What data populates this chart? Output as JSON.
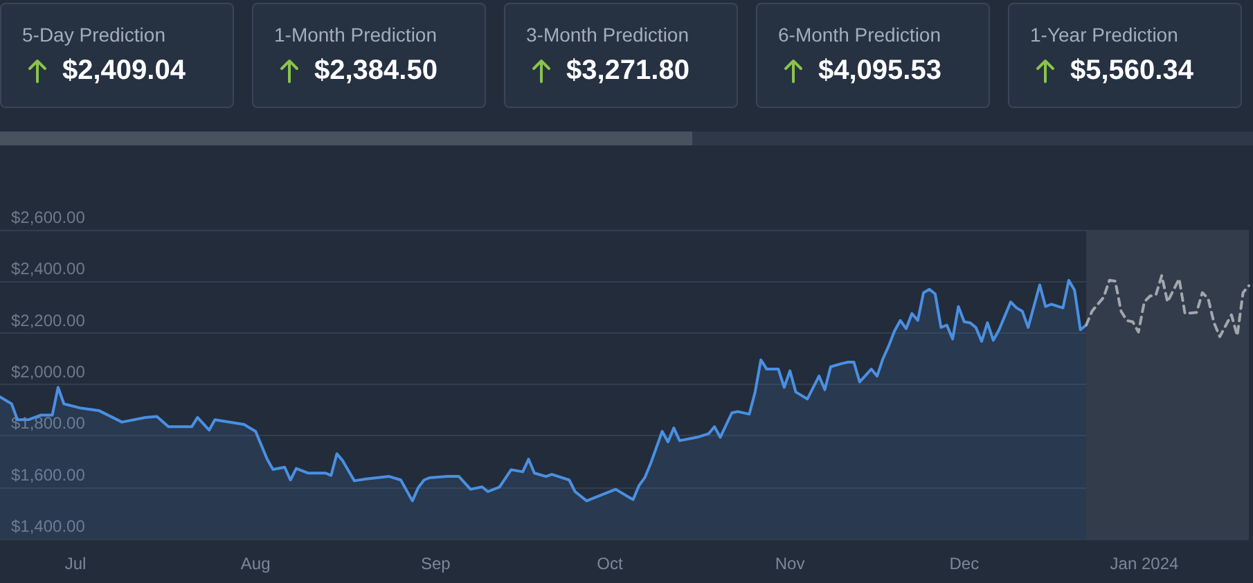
{
  "chart_data": [
    {
      "type": "other",
      "annotations": [
        "5-Day Prediction",
        "$2,409.04",
        "1-Month Prediction",
        "$2,384.50",
        "3-Month Prediction",
        "$3,271.80",
        "6-Month Prediction",
        "$4,095.53",
        "1-Year Prediction",
        "$5,560.34"
      ]
    },
    {
      "type": "area",
      "grid": "y",
      "xlim": [
        "2023-06-18",
        "2024-01-19"
      ],
      "ylim": [
        1400,
        2600
      ],
      "xticks": [
        {
          "value": "2023-07-01",
          "label": "Jul"
        },
        {
          "value": "2023-08-01",
          "label": "Aug"
        },
        {
          "value": "2023-09-01",
          "label": "Sep"
        },
        {
          "value": "2023-10-01",
          "label": "Oct"
        },
        {
          "value": "2023-11-01",
          "label": "Nov"
        },
        {
          "value": "2023-12-01",
          "label": "Dec"
        },
        {
          "value": "2024-01-01",
          "label": "Jan 2024"
        }
      ],
      "yticks": [
        {
          "value": 1400,
          "label": "$1,400.00"
        },
        {
          "value": 1600,
          "label": "$1,600.00"
        },
        {
          "value": 1800,
          "label": "$1,800.00"
        },
        {
          "value": 2000,
          "label": "$2,000.00"
        },
        {
          "value": 2200,
          "label": "$2,200.00"
        },
        {
          "value": 2400,
          "label": "$2,400.00"
        },
        {
          "value": 2600,
          "label": "$2,600.00"
        }
      ],
      "bands": [
        {
          "axis": "x",
          "from": "2023-12-22",
          "to": "2024-01-19",
          "color": "#333c4b"
        }
      ],
      "series": [
        {
          "type": "area",
          "color": "#4a90e2",
          "line_style": "solid",
          "x": [
            "2023-06-18",
            "2023-06-20",
            "2023-06-21",
            "2023-06-23",
            "2023-06-25",
            "2023-06-27",
            "2023-06-28",
            "2023-06-29",
            "2023-07-02",
            "2023-07-05",
            "2023-07-09",
            "2023-07-13",
            "2023-07-15",
            "2023-07-17",
            "2023-07-19",
            "2023-07-21",
            "2023-07-22",
            "2023-07-24",
            "2023-07-25",
            "2023-07-30",
            "2023-08-01",
            "2023-08-03",
            "2023-08-04",
            "2023-08-06",
            "2023-08-07",
            "2023-08-08",
            "2023-08-10",
            "2023-08-13",
            "2023-08-14",
            "2023-08-15",
            "2023-08-16",
            "2023-08-18",
            "2023-08-20",
            "2023-08-24",
            "2023-08-26",
            "2023-08-28",
            "2023-08-29",
            "2023-08-30",
            "2023-08-31",
            "2023-09-03",
            "2023-09-05",
            "2023-09-07",
            "2023-09-09",
            "2023-09-10",
            "2023-09-12",
            "2023-09-14",
            "2023-09-16",
            "2023-09-17",
            "2023-09-18",
            "2023-09-20",
            "2023-09-21",
            "2023-09-24",
            "2023-09-25",
            "2023-09-27",
            "2023-09-29",
            "2023-10-02",
            "2023-10-04",
            "2023-10-05",
            "2023-10-06",
            "2023-10-07",
            "2023-10-08",
            "2023-10-10",
            "2023-10-11",
            "2023-10-12",
            "2023-10-13",
            "2023-10-16",
            "2023-10-18",
            "2023-10-19",
            "2023-10-20",
            "2023-10-22",
            "2023-10-23",
            "2023-10-25",
            "2023-10-26",
            "2023-10-27",
            "2023-10-28",
            "2023-10-30",
            "2023-10-31",
            "2023-11-01",
            "2023-11-02",
            "2023-11-04",
            "2023-11-06",
            "2023-11-07",
            "2023-11-08",
            "2023-11-10",
            "2023-11-11",
            "2023-11-12",
            "2023-11-13",
            "2023-11-15",
            "2023-11-16",
            "2023-11-17",
            "2023-11-18",
            "2023-11-19",
            "2023-11-20",
            "2023-11-21",
            "2023-11-22",
            "2023-11-23",
            "2023-11-24",
            "2023-11-25",
            "2023-11-26",
            "2023-11-27",
            "2023-11-28",
            "2023-11-29",
            "2023-11-30",
            "2023-12-01",
            "2023-12-02",
            "2023-12-03",
            "2023-12-04",
            "2023-12-05",
            "2023-12-06",
            "2023-12-07",
            "2023-12-08",
            "2023-12-09",
            "2023-12-10",
            "2023-12-11",
            "2023-12-12",
            "2023-12-14",
            "2023-12-15",
            "2023-12-16",
            "2023-12-18",
            "2023-12-19",
            "2023-12-20",
            "2023-12-21",
            "2023-12-22"
          ],
          "values": [
            1951,
            1924,
            1862,
            1863,
            1880,
            1880,
            1988,
            1924,
            1907,
            1898,
            1853,
            1871,
            1875,
            1835,
            1835,
            1835,
            1871,
            1822,
            1862,
            1844,
            1817,
            1709,
            1669,
            1678,
            1628,
            1673,
            1655,
            1655,
            1646,
            1730,
            1703,
            1625,
            1632,
            1642,
            1628,
            1547,
            1598,
            1628,
            1637,
            1642,
            1642,
            1592,
            1601,
            1583,
            1601,
            1668,
            1660,
            1709,
            1655,
            1642,
            1650,
            1628,
            1583,
            1547,
            1565,
            1592,
            1565,
            1552,
            1606,
            1637,
            1691,
            1817,
            1776,
            1830,
            1781,
            1794,
            1808,
            1835,
            1794,
            1889,
            1894,
            1884,
            1970,
            2095,
            2059,
            2059,
            1988,
            2052,
            1970,
            1943,
            2032,
            1979,
            2068,
            2081,
            2086,
            2086,
            2009,
            2059,
            2032,
            2099,
            2149,
            2207,
            2248,
            2216,
            2275,
            2248,
            2356,
            2369,
            2351,
            2221,
            2230,
            2176,
            2302,
            2243,
            2239,
            2221,
            2167,
            2239,
            2171,
            2212,
            2266,
            2320,
            2297,
            2284,
            2221,
            2386,
            2302,
            2311,
            2297,
            2404,
            2365,
            2212,
            2230
          ]
        },
        {
          "type": "line",
          "color": "#a3a7ad",
          "line_style": "dashed",
          "x": [
            "2023-12-22",
            "2023-12-23",
            "2023-12-25",
            "2023-12-26",
            "2023-12-27",
            "2023-12-28",
            "2023-12-29",
            "2023-12-30",
            "2023-12-31",
            "2024-01-01",
            "2024-01-02",
            "2024-01-03",
            "2024-01-04",
            "2024-01-05",
            "2024-01-06",
            "2024-01-07",
            "2024-01-08",
            "2024-01-10",
            "2024-01-11",
            "2024-01-12",
            "2024-01-13",
            "2024-01-14",
            "2024-01-16",
            "2024-01-17",
            "2024-01-18",
            "2024-01-19"
          ],
          "values": [
            2230,
            2284,
            2338,
            2404,
            2401,
            2284,
            2248,
            2243,
            2203,
            2320,
            2343,
            2347,
            2422,
            2320,
            2365,
            2410,
            2275,
            2279,
            2356,
            2333,
            2239,
            2185,
            2270,
            2189,
            2356,
            2383
          ]
        }
      ]
    }
  ]
}
